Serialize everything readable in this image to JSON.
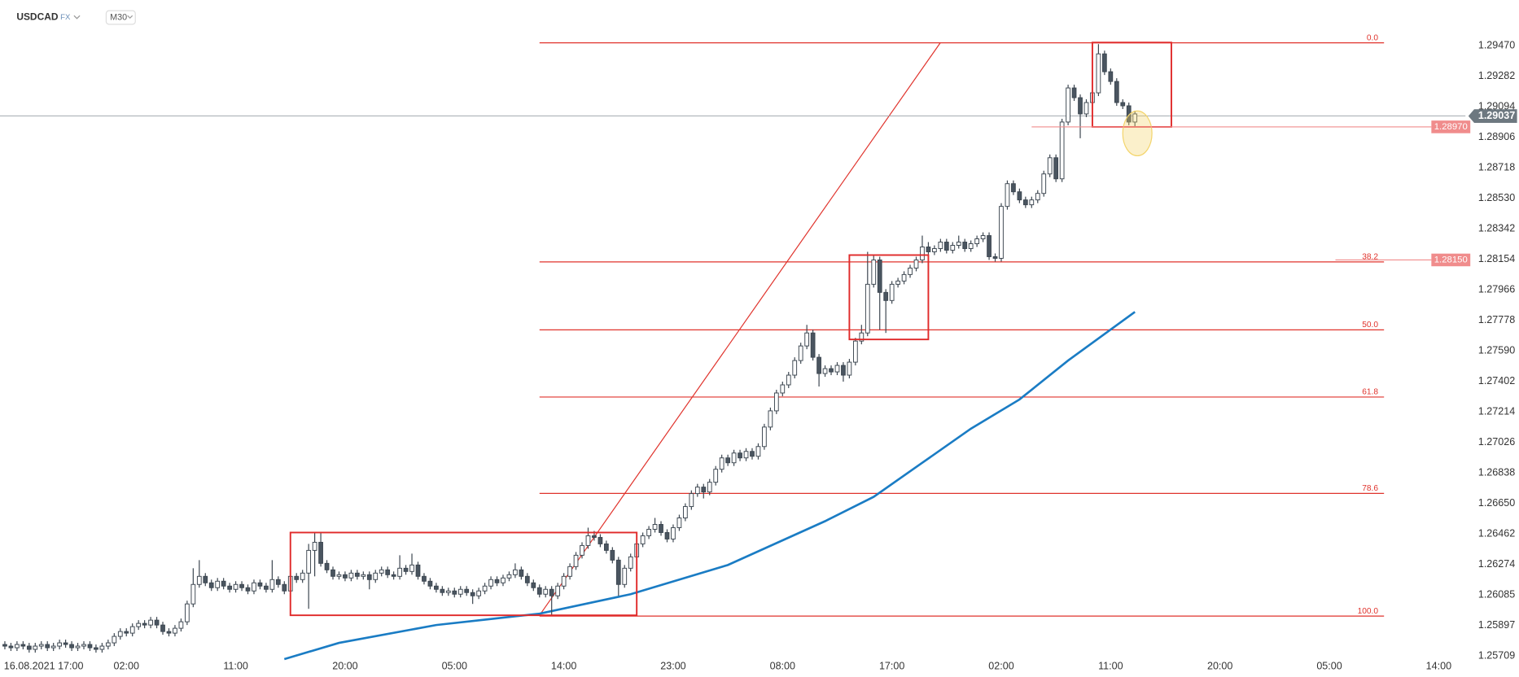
{
  "header": {
    "symbol": "USDCAD",
    "market": "FX",
    "interval": "M30"
  },
  "chart_data": {
    "type": "candlestick",
    "up_color": "#ffffff",
    "down_color": "#4a5560",
    "outline_color": "#3c4650",
    "xlim": [
      -0.8,
      239.6
    ],
    "ylim": [
      1.25691,
      1.29752
    ],
    "xticks": [
      {
        "value": 6,
        "label": "16.08.2021 17:00"
      },
      {
        "value": 20,
        "label": "02:00"
      },
      {
        "value": 38,
        "label": "11:00"
      },
      {
        "value": 56,
        "label": "20:00"
      },
      {
        "value": 74,
        "label": "05:00"
      },
      {
        "value": 92,
        "label": "14:00"
      },
      {
        "value": 110,
        "label": "23:00"
      },
      {
        "value": 128,
        "label": "08:00"
      },
      {
        "value": 146,
        "label": "17:00"
      },
      {
        "value": 164,
        "label": "02:00"
      },
      {
        "value": 182,
        "label": "11:00"
      },
      {
        "value": 200,
        "label": "20:00"
      },
      {
        "value": 218,
        "label": "05:00"
      },
      {
        "value": 236,
        "label": "14:00"
      }
    ],
    "yticks": [
      1.25709,
      1.25897,
      1.26085,
      1.26274,
      1.26462,
      {
        "value": 1.2665,
        "label": "1.26650"
      },
      1.26838,
      1.27026,
      1.27214,
      1.27402,
      {
        "value": 1.2759,
        "label": "1.27590"
      },
      1.27778,
      1.27966,
      1.28154,
      1.28342,
      {
        "value": 1.2853,
        "label": "1.28530"
      },
      1.28718,
      1.28906,
      1.29094,
      1.29282,
      {
        "value": 1.2947,
        "label": "1.29470"
      }
    ],
    "ohlc": [
      [
        1.2578,
        1.258,
        1.2575,
        1.2577
      ],
      [
        1.2577,
        1.2579,
        1.2574,
        1.2576
      ],
      [
        1.2576,
        1.258,
        1.2574,
        1.2578
      ],
      [
        1.2578,
        1.258,
        1.2575,
        1.2577
      ],
      [
        1.2577,
        1.2579,
        1.2573,
        1.2575
      ],
      [
        1.2575,
        1.2579,
        1.2573,
        1.2577
      ],
      [
        1.2577,
        1.258,
        1.2575,
        1.2578
      ],
      [
        1.2578,
        1.258,
        1.2574,
        1.2576
      ],
      [
        1.2576,
        1.2579,
        1.2574,
        1.2577
      ],
      [
        1.2577,
        1.2581,
        1.2575,
        1.2579
      ],
      [
        1.2579,
        1.2581,
        1.2576,
        1.2578
      ],
      [
        1.2578,
        1.258,
        1.2574,
        1.2576
      ],
      [
        1.2576,
        1.2579,
        1.2574,
        1.2577
      ],
      [
        1.2577,
        1.258,
        1.2575,
        1.2578
      ],
      [
        1.2578,
        1.258,
        1.2574,
        1.2576
      ],
      [
        1.2576,
        1.2578,
        1.2573,
        1.2575
      ],
      [
        1.2575,
        1.2579,
        1.2573,
        1.2577
      ],
      [
        1.2577,
        1.2581,
        1.2575,
        1.2579
      ],
      [
        1.2579,
        1.2585,
        1.2577,
        1.2583
      ],
      [
        1.2583,
        1.2588,
        1.2581,
        1.2586
      ],
      [
        1.2586,
        1.2588,
        1.2583,
        1.2585
      ],
      [
        1.2585,
        1.2591,
        1.2583,
        1.2589
      ],
      [
        1.2589,
        1.2593,
        1.2587,
        1.2591
      ],
      [
        1.2591,
        1.2593,
        1.2588,
        1.259
      ],
      [
        1.259,
        1.2595,
        1.2588,
        1.2593
      ],
      [
        1.2593,
        1.2595,
        1.2588,
        1.259
      ],
      [
        1.259,
        1.2592,
        1.2584,
        1.2586
      ],
      [
        1.2586,
        1.2588,
        1.2583,
        1.2585
      ],
      [
        1.2585,
        1.259,
        1.2583,
        1.2588
      ],
      [
        1.2588,
        1.2594,
        1.2586,
        1.2592
      ],
      [
        1.2592,
        1.2605,
        1.259,
        1.2603
      ],
      [
        1.2603,
        1.2625,
        1.2601,
        1.2615
      ],
      [
        1.2615,
        1.263,
        1.2613,
        1.262
      ],
      [
        1.262,
        1.2622,
        1.2614,
        1.2616
      ],
      [
        1.2616,
        1.2618,
        1.2611,
        1.2613
      ],
      [
        1.2613,
        1.2619,
        1.2611,
        1.2617
      ],
      [
        1.2617,
        1.2619,
        1.2612,
        1.2614
      ],
      [
        1.2614,
        1.2616,
        1.261,
        1.2612
      ],
      [
        1.2612,
        1.2617,
        1.261,
        1.2615
      ],
      [
        1.2615,
        1.2617,
        1.2611,
        1.2613
      ],
      [
        1.2613,
        1.2615,
        1.2609,
        1.2611
      ],
      [
        1.2611,
        1.2618,
        1.2609,
        1.2616
      ],
      [
        1.2616,
        1.2618,
        1.2612,
        1.2614
      ],
      [
        1.2614,
        1.2616,
        1.261,
        1.2612
      ],
      [
        1.2612,
        1.263,
        1.261,
        1.2618
      ],
      [
        1.2618,
        1.262,
        1.2613,
        1.2615
      ],
      [
        1.2615,
        1.2617,
        1.2609,
        1.2611
      ],
      [
        1.2611,
        1.2622,
        1.2609,
        1.262
      ],
      [
        1.262,
        1.2622,
        1.2616,
        1.2618
      ],
      [
        1.2618,
        1.2624,
        1.2616,
        1.2622
      ],
      [
        1.2622,
        1.264,
        1.26,
        1.2636
      ],
      [
        1.2636,
        1.2647,
        1.262,
        1.2641
      ],
      [
        1.2641,
        1.2647,
        1.2626,
        1.2628
      ],
      [
        1.2628,
        1.263,
        1.2622,
        1.2624
      ],
      [
        1.2624,
        1.2626,
        1.2618,
        1.262
      ],
      [
        1.262,
        1.2623,
        1.2618,
        1.2621
      ],
      [
        1.2621,
        1.2623,
        1.2617,
        1.2619
      ],
      [
        1.2619,
        1.2624,
        1.2617,
        1.2622
      ],
      [
        1.2622,
        1.2624,
        1.2618,
        1.262
      ],
      [
        1.262,
        1.2623,
        1.2618,
        1.2621
      ],
      [
        1.2621,
        1.2623,
        1.2612,
        1.2618
      ],
      [
        1.2618,
        1.2624,
        1.2616,
        1.2622
      ],
      [
        1.2622,
        1.2626,
        1.262,
        1.2624
      ],
      [
        1.2624,
        1.2626,
        1.2619,
        1.2621
      ],
      [
        1.2621,
        1.2623,
        1.2618,
        1.262
      ],
      [
        1.262,
        1.2633,
        1.2618,
        1.2625
      ],
      [
        1.2625,
        1.2627,
        1.2621,
        1.2623
      ],
      [
        1.2623,
        1.2634,
        1.2621,
        1.2627
      ],
      [
        1.2627,
        1.2629,
        1.2618,
        1.262
      ],
      [
        1.262,
        1.2622,
        1.2615,
        1.2617
      ],
      [
        1.2617,
        1.2619,
        1.2612,
        1.2614
      ],
      [
        1.2614,
        1.2616,
        1.261,
        1.2612
      ],
      [
        1.2612,
        1.2614,
        1.2608,
        1.261
      ],
      [
        1.261,
        1.2613,
        1.2608,
        1.2611
      ],
      [
        1.2611,
        1.2613,
        1.2607,
        1.2609
      ],
      [
        1.2609,
        1.2614,
        1.2607,
        1.2612
      ],
      [
        1.2612,
        1.2614,
        1.2608,
        1.261
      ],
      [
        1.261,
        1.2612,
        1.2603,
        1.2608
      ],
      [
        1.2608,
        1.2613,
        1.2606,
        1.2611
      ],
      [
        1.2611,
        1.2616,
        1.2609,
        1.2614
      ],
      [
        1.2614,
        1.262,
        1.2612,
        1.2618
      ],
      [
        1.2618,
        1.262,
        1.2614,
        1.2616
      ],
      [
        1.2616,
        1.2621,
        1.2614,
        1.2619
      ],
      [
        1.2619,
        1.2623,
        1.2617,
        1.2621
      ],
      [
        1.2621,
        1.2628,
        1.2619,
        1.2624
      ],
      [
        1.2624,
        1.2626,
        1.2618,
        1.262
      ],
      [
        1.262,
        1.2622,
        1.2614,
        1.2616
      ],
      [
        1.2616,
        1.2618,
        1.2611,
        1.2613
      ],
      [
        1.2613,
        1.2615,
        1.2607,
        1.2609
      ],
      [
        1.2609,
        1.2614,
        1.2607,
        1.2612
      ],
      [
        1.2612,
        1.2614,
        1.2596,
        1.2608
      ],
      [
        1.2608,
        1.2616,
        1.2606,
        1.2614
      ],
      [
        1.2614,
        1.2622,
        1.2612,
        1.262
      ],
      [
        1.262,
        1.2628,
        1.2618,
        1.2626
      ],
      [
        1.2626,
        1.2635,
        1.2624,
        1.2633
      ],
      [
        1.2633,
        1.2641,
        1.2631,
        1.2639
      ],
      [
        1.2639,
        1.265,
        1.2637,
        1.2645
      ],
      [
        1.2645,
        1.2648,
        1.2642,
        1.2644
      ],
      [
        1.2644,
        1.2646,
        1.2638,
        1.264
      ],
      [
        1.264,
        1.2642,
        1.2634,
        1.2636
      ],
      [
        1.2636,
        1.2638,
        1.2628,
        1.263
      ],
      [
        1.263,
        1.2632,
        1.2608,
        1.2615
      ],
      [
        1.2615,
        1.2627,
        1.2613,
        1.2625
      ],
      [
        1.2625,
        1.2634,
        1.2623,
        1.2632
      ],
      [
        1.2632,
        1.2642,
        1.263,
        1.264
      ],
      [
        1.264,
        1.2647,
        1.2638,
        1.2645
      ],
      [
        1.2645,
        1.2651,
        1.2643,
        1.2649
      ],
      [
        1.2649,
        1.2656,
        1.2647,
        1.2652
      ],
      [
        1.2652,
        1.2654,
        1.2645,
        1.2647
      ],
      [
        1.2647,
        1.2649,
        1.2641,
        1.2643
      ],
      [
        1.2643,
        1.2652,
        1.2641,
        1.265
      ],
      [
        1.265,
        1.2658,
        1.2648,
        1.2656
      ],
      [
        1.2656,
        1.2665,
        1.2654,
        1.2663
      ],
      [
        1.2663,
        1.2673,
        1.2661,
        1.2671
      ],
      [
        1.2671,
        1.2677,
        1.2669,
        1.2675
      ],
      [
        1.2675,
        1.2677,
        1.2668,
        1.2672
      ],
      [
        1.2672,
        1.268,
        1.267,
        1.2678
      ],
      [
        1.2678,
        1.2688,
        1.2676,
        1.2686
      ],
      [
        1.2686,
        1.2695,
        1.2684,
        1.2693
      ],
      [
        1.2693,
        1.2695,
        1.2688,
        1.269
      ],
      [
        1.269,
        1.2698,
        1.2688,
        1.2696
      ],
      [
        1.2696,
        1.2698,
        1.2691,
        1.2693
      ],
      [
        1.2693,
        1.2699,
        1.2691,
        1.2697
      ],
      [
        1.2697,
        1.2699,
        1.2692,
        1.2694
      ],
      [
        1.2694,
        1.2702,
        1.2692,
        1.27
      ],
      [
        1.27,
        1.2714,
        1.2698,
        1.2712
      ],
      [
        1.2712,
        1.2724,
        1.271,
        1.2722
      ],
      [
        1.2722,
        1.2735,
        1.272,
        1.2733
      ],
      [
        1.2733,
        1.274,
        1.2731,
        1.2738
      ],
      [
        1.2738,
        1.2746,
        1.2736,
        1.2744
      ],
      [
        1.2744,
        1.2755,
        1.2742,
        1.2753
      ],
      [
        1.2753,
        1.2764,
        1.2751,
        1.2762
      ],
      [
        1.2762,
        1.2775,
        1.276,
        1.277
      ],
      [
        1.277,
        1.2772,
        1.2753,
        1.2755
      ],
      [
        1.2755,
        1.2757,
        1.2737,
        1.2745
      ],
      [
        1.2745,
        1.275,
        1.2743,
        1.2748
      ],
      [
        1.2748,
        1.275,
        1.2744,
        1.2746
      ],
      [
        1.2746,
        1.2752,
        1.2744,
        1.275
      ],
      [
        1.275,
        1.2752,
        1.274,
        1.2744
      ],
      [
        1.2744,
        1.2754,
        1.2742,
        1.2752
      ],
      [
        1.2752,
        1.2767,
        1.275,
        1.2765
      ],
      [
        1.2765,
        1.2775,
        1.2763,
        1.277
      ],
      [
        1.277,
        1.282,
        1.2768,
        1.28
      ],
      [
        1.28,
        1.2818,
        1.2798,
        1.2815
      ],
      [
        1.2815,
        1.2817,
        1.2772,
        1.2795
      ],
      [
        1.2795,
        1.2797,
        1.277,
        1.279
      ],
      [
        1.279,
        1.2802,
        1.2788,
        1.28
      ],
      [
        1.28,
        1.2804,
        1.2798,
        1.2802
      ],
      [
        1.2802,
        1.2808,
        1.28,
        1.2806
      ],
      [
        1.2806,
        1.2812,
        1.2804,
        1.281
      ],
      [
        1.281,
        1.2817,
        1.2808,
        1.2815
      ],
      [
        1.2815,
        1.283,
        1.2813,
        1.2823
      ],
      [
        1.2823,
        1.2826,
        1.2818,
        1.282
      ],
      [
        1.282,
        1.2824,
        1.2818,
        1.2822
      ],
      [
        1.2822,
        1.2828,
        1.282,
        1.2826
      ],
      [
        1.2826,
        1.2828,
        1.2819,
        1.2821
      ],
      [
        1.2821,
        1.2826,
        1.2819,
        1.2824
      ],
      [
        1.2824,
        1.283,
        1.2822,
        1.2826
      ],
      [
        1.2826,
        1.2828,
        1.282,
        1.2822
      ],
      [
        1.2822,
        1.2827,
        1.282,
        1.2825
      ],
      [
        1.2825,
        1.283,
        1.2823,
        1.2828
      ],
      [
        1.2828,
        1.2832,
        1.2826,
        1.283
      ],
      [
        1.283,
        1.2832,
        1.2815,
        1.2817
      ],
      [
        1.2817,
        1.2819,
        1.2814,
        1.2816
      ],
      [
        1.2816,
        1.285,
        1.2814,
        1.2848
      ],
      [
        1.2848,
        1.2864,
        1.2846,
        1.2862
      ],
      [
        1.2862,
        1.2864,
        1.2855,
        1.2857
      ],
      [
        1.2857,
        1.2859,
        1.285,
        1.2852
      ],
      [
        1.2852,
        1.2854,
        1.2847,
        1.2849
      ],
      [
        1.2849,
        1.2854,
        1.2847,
        1.2852
      ],
      [
        1.2852,
        1.2858,
        1.285,
        1.2856
      ],
      [
        1.2856,
        1.287,
        1.2854,
        1.2868
      ],
      [
        1.2868,
        1.288,
        1.2866,
        1.2878
      ],
      [
        1.2878,
        1.288,
        1.2863,
        1.2865
      ],
      [
        1.2865,
        1.2902,
        1.2863,
        1.29
      ],
      [
        1.29,
        1.2923,
        1.2898,
        1.2921
      ],
      [
        1.2921,
        1.2923,
        1.2913,
        1.2915
      ],
      [
        1.2915,
        1.2917,
        1.289,
        1.2905
      ],
      [
        1.2905,
        1.2914,
        1.2903,
        1.2912
      ],
      [
        1.2912,
        1.292,
        1.291,
        1.2918
      ],
      [
        1.2918,
        1.2948,
        1.2916,
        1.2942
      ],
      [
        1.2942,
        1.2944,
        1.2929,
        1.2931
      ],
      [
        1.2931,
        1.2933,
        1.2923,
        1.2925
      ],
      [
        1.2925,
        1.2927,
        1.291,
        1.2912
      ],
      [
        1.2912,
        1.2914,
        1.2908,
        1.291
      ],
      [
        1.291,
        1.2912,
        1.2898,
        1.29
      ],
      [
        1.29,
        1.2907,
        1.2897,
        1.2905
      ]
    ],
    "ma": {
      "color": "#1a7cc4",
      "x": [
        46,
        55,
        71,
        88,
        103,
        119,
        135,
        143,
        151,
        159,
        167,
        175,
        186
      ],
      "values": [
        1.2569,
        1.2579,
        1.259,
        1.2597,
        1.2609,
        1.2627,
        1.2654,
        1.2669,
        1.269,
        1.2711,
        1.2729,
        1.2753,
        1.2783
      ]
    },
    "fib": {
      "color": "#e0332c",
      "x": [
        88,
        227
      ],
      "levels": [
        {
          "label": "0.0",
          "price": 1.29488
        },
        {
          "label": "38.2",
          "price": 1.28138
        },
        {
          "label": "50.0",
          "price": 1.27719
        },
        {
          "label": "61.8",
          "price": 1.27305
        },
        {
          "label": "78.6",
          "price": 1.26711
        },
        {
          "label": "100.0",
          "price": 1.25955
        }
      ]
    },
    "trendline": {
      "color": "#e0332c",
      "x": [
        88,
        154
      ],
      "values": [
        1.2596,
        1.2949
      ]
    },
    "boxes": [
      {
        "x": [
          47,
          104
        ],
        "y": [
          1.2647,
          1.2596
        ]
      },
      {
        "x": [
          139,
          152
        ],
        "y": [
          1.2818,
          1.2766
        ]
      },
      {
        "x": [
          179,
          192
        ],
        "y": [
          1.2949,
          1.2897
        ]
      }
    ],
    "box_color": "#e02a2a",
    "highlight": {
      "x": 186.4,
      "y": 1.2893,
      "color": "#f3d46a"
    },
    "price_labels": [
      {
        "value": 1.2897,
        "label": "1.28970",
        "x": 169
      },
      {
        "value": 1.2815,
        "label": "1.28150",
        "x": 219
      }
    ],
    "price_label_color": "#f08c8c",
    "last_price": 1.29037,
    "last_price_color": "#6d7880"
  }
}
